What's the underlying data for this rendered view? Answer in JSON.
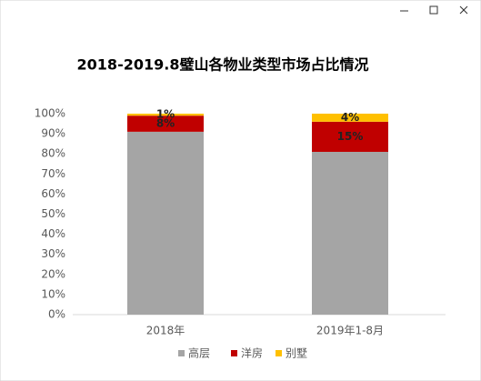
{
  "chart_data": {
    "type": "stacked-bar",
    "title": "2018-2019.8璧山各物业类型市场占比情况",
    "categories": [
      "2018年",
      "2019年1-8月"
    ],
    "series": [
      {
        "name": "高层",
        "color": "#a5a5a5",
        "values": [
          91,
          81
        ]
      },
      {
        "name": "洋房",
        "color": "#c00000",
        "values": [
          8,
          15
        ],
        "value_labels": [
          "8%",
          "15%"
        ]
      },
      {
        "name": "别墅",
        "color": "#ffc000",
        "values": [
          1,
          4
        ],
        "value_labels": [
          "1%",
          "4%"
        ]
      }
    ],
    "ylim": [
      0,
      100
    ],
    "yticks": [
      {
        "value": 0,
        "label": "0%"
      },
      {
        "value": 10,
        "label": "10%"
      },
      {
        "value": 20,
        "label": "20%"
      },
      {
        "value": 30,
        "label": "30%"
      },
      {
        "value": 40,
        "label": "40%"
      },
      {
        "value": 50,
        "label": "50%"
      },
      {
        "value": 60,
        "label": "60%"
      },
      {
        "value": 70,
        "label": "70%"
      },
      {
        "value": 80,
        "label": "80%"
      },
      {
        "value": 90,
        "label": "90%"
      },
      {
        "value": 100,
        "label": "100%"
      }
    ],
    "legend": "bottom"
  }
}
